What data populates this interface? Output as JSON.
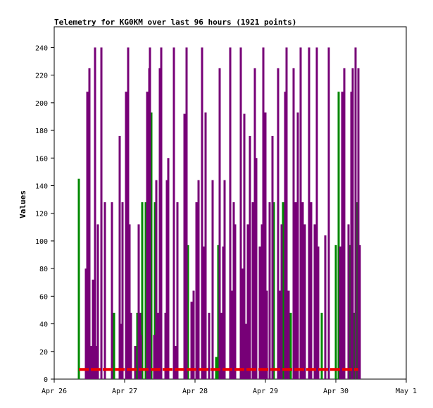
{
  "chart_data": {
    "type": "bar",
    "title": "Telemetry for KG0KM over last 96 hours (1921 points)",
    "xlabel": "",
    "ylabel": "Values",
    "ylim": [
      0,
      255
    ],
    "yticks": [
      0,
      20,
      40,
      60,
      80,
      100,
      120,
      140,
      160,
      180,
      200,
      220,
      240
    ],
    "xlim": [
      "Apr 26",
      "May 1"
    ],
    "xticks": [
      "Apr 26",
      "Apr 27",
      "Apr 28",
      "Apr 29",
      "Apr 30",
      "May 1"
    ],
    "grid": false,
    "legend": "none",
    "series": [
      {
        "color": "#ee0000",
        "style": "line",
        "x_days": [
          0.35,
          0.45,
          0.6,
          0.75,
          0.9,
          1.05,
          1.2,
          1.35,
          1.5,
          1.65,
          1.8,
          1.95,
          2.1,
          2.25,
          2.4,
          2.55,
          2.7,
          2.85,
          3.0,
          3.15,
          3.3,
          3.45,
          3.6,
          3.75,
          3.9,
          4.05,
          4.2,
          4.32
        ],
        "values": [
          7,
          7,
          7,
          7,
          7,
          7,
          7,
          7,
          7,
          7,
          7,
          7,
          7,
          7,
          7,
          7,
          7,
          7,
          7,
          7,
          7,
          7,
          7,
          7,
          7,
          7,
          7,
          7
        ]
      },
      {
        "color": "#008800",
        "style": "bars",
        "x_days": [
          0.35,
          0.85,
          1.18,
          1.25,
          1.3,
          1.34,
          1.38,
          1.43,
          1.9,
          2.3,
          2.33,
          3.12,
          3.25,
          3.36,
          3.8,
          4.0,
          4.04,
          4.2,
          4.26,
          4.3
        ],
        "values": [
          145,
          48,
          48,
          128,
          128,
          64,
          193,
          128,
          97,
          16,
          97,
          128,
          128,
          48,
          48,
          97,
          208,
          97,
          48,
          128
        ]
      },
      {
        "color": "#770077",
        "style": "bars",
        "x_days": [
          0.45,
          0.47,
          0.5,
          0.52,
          0.55,
          0.58,
          0.6,
          0.62,
          0.67,
          0.72,
          0.82,
          0.93,
          0.95,
          0.97,
          1.02,
          1.05,
          1.07,
          1.09,
          1.15,
          1.2,
          1.22,
          1.23,
          1.32,
          1.35,
          1.36,
          1.42,
          1.45,
          1.47,
          1.5,
          1.52,
          1.58,
          1.6,
          1.62,
          1.7,
          1.72,
          1.75,
          1.85,
          1.88,
          1.95,
          1.98,
          2.02,
          2.05,
          2.1,
          2.12,
          2.15,
          2.2,
          2.25,
          2.35,
          2.37,
          2.4,
          2.42,
          2.5,
          2.52,
          2.55,
          2.57,
          2.65,
          2.67,
          2.7,
          2.72,
          2.75,
          2.78,
          2.82,
          2.85,
          2.87,
          2.92,
          2.95,
          2.97,
          3.0,
          3.02,
          3.06,
          3.1,
          3.18,
          3.2,
          3.23,
          3.28,
          3.3,
          3.33,
          3.4,
          3.43,
          3.46,
          3.5,
          3.53,
          3.56,
          3.62,
          3.65,
          3.7,
          3.73,
          3.75,
          3.85,
          3.9,
          4.06,
          4.09,
          4.12,
          4.18,
          4.22,
          4.24,
          4.28,
          4.32,
          4.34
        ],
        "values": [
          80,
          208,
          225,
          24,
          72,
          240,
          24,
          112,
          240,
          128,
          128,
          176,
          40,
          128,
          208,
          240,
          112,
          48,
          24,
          112,
          48,
          32,
          208,
          225,
          240,
          32,
          144,
          48,
          225,
          240,
          48,
          144,
          160,
          240,
          24,
          128,
          192,
          240,
          56,
          64,
          128,
          144,
          240,
          96,
          193,
          48,
          144,
          225,
          48,
          96,
          144,
          240,
          64,
          128,
          112,
          240,
          80,
          192,
          40,
          112,
          176,
          128,
          225,
          160,
          96,
          112,
          240,
          193,
          64,
          128,
          176,
          225,
          64,
          112,
          208,
          240,
          64,
          225,
          128,
          193,
          240,
          128,
          112,
          240,
          128,
          112,
          240,
          96,
          104,
          240,
          96,
          208,
          225,
          112,
          208,
          225,
          240,
          225,
          97
        ]
      }
    ]
  }
}
